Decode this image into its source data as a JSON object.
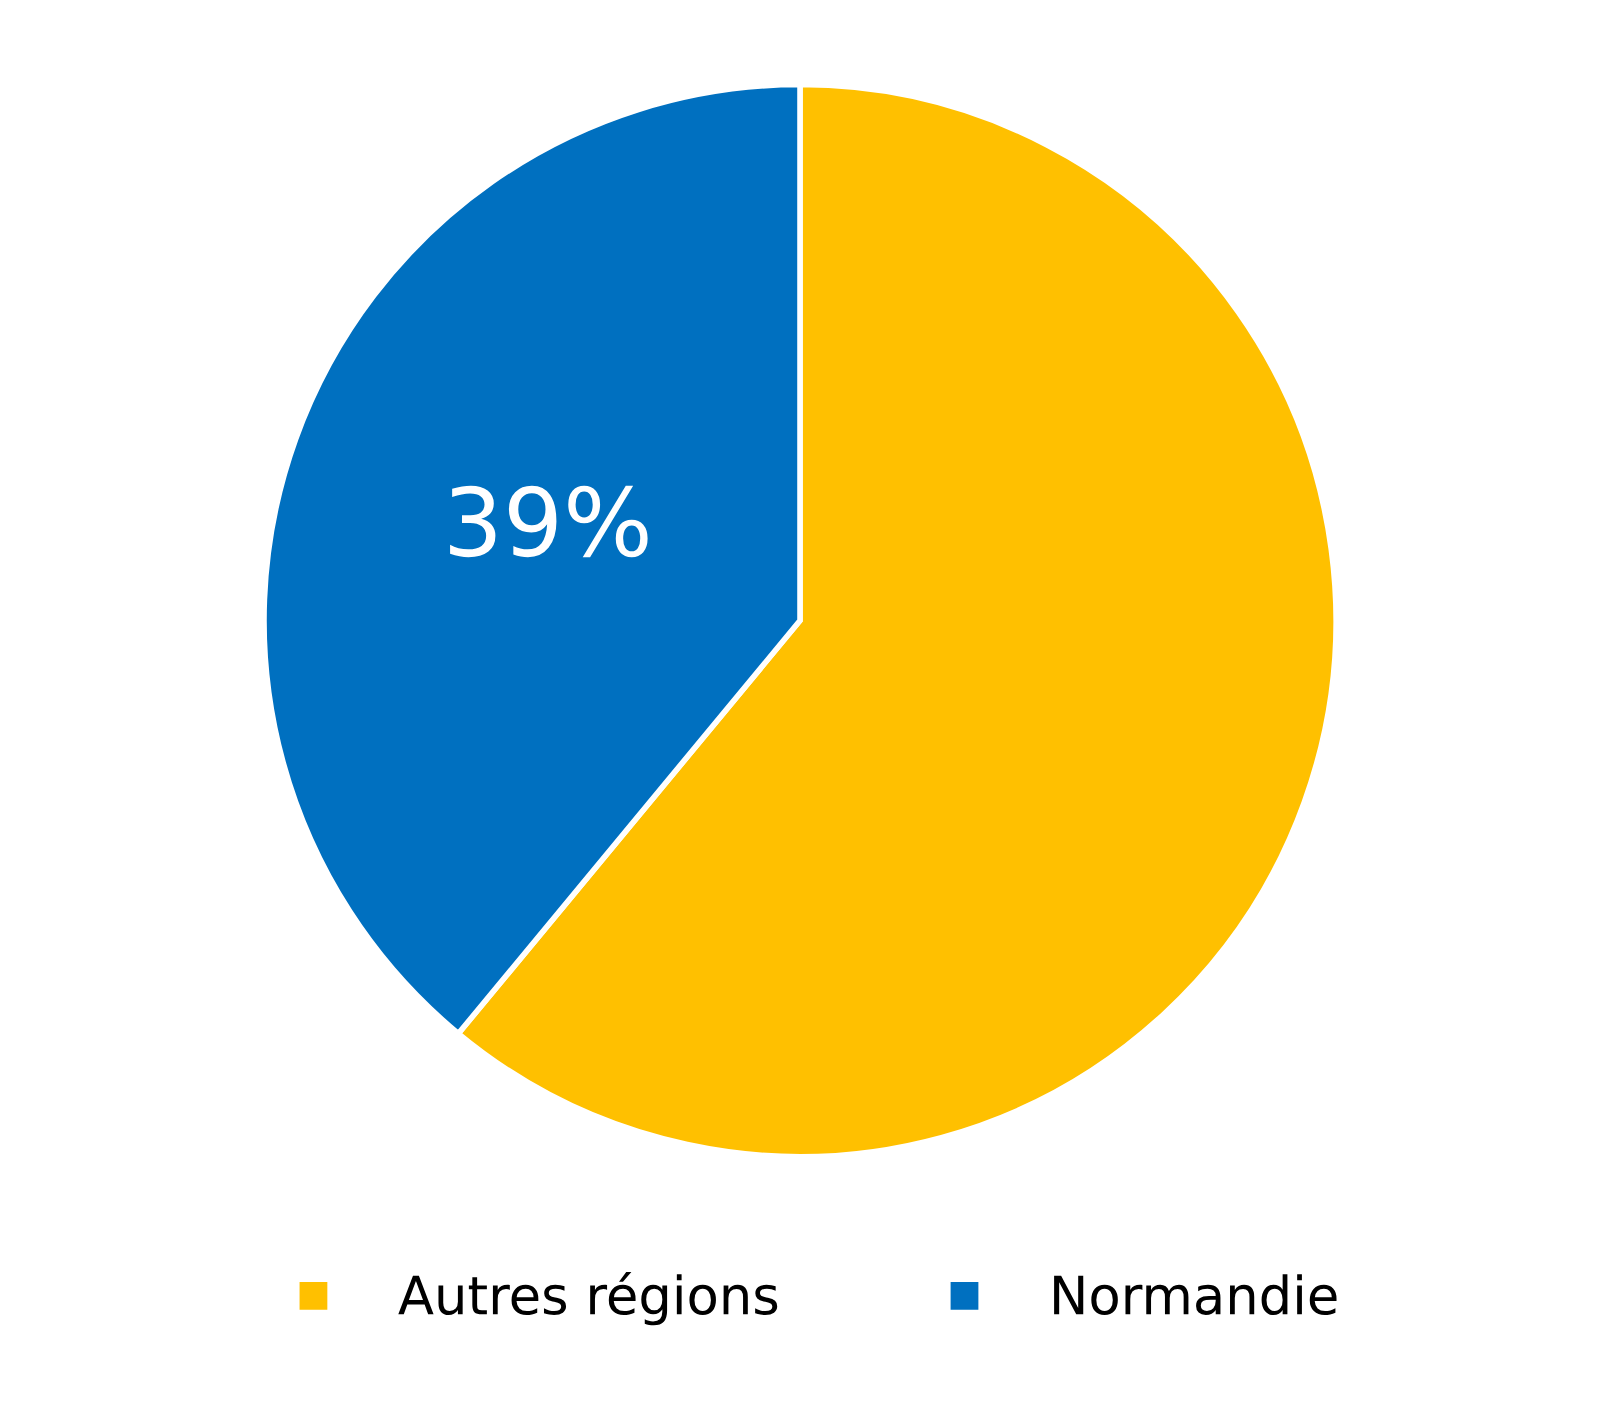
{
  "chart_data": {
    "type": "pie",
    "categories": [
      "Autres régions",
      "Normandie"
    ],
    "values": [
      61,
      39
    ],
    "colors": [
      "#ffc000",
      "#0070c0"
    ],
    "value_labels": [
      null,
      "39%"
    ],
    "legend": "bottom"
  }
}
